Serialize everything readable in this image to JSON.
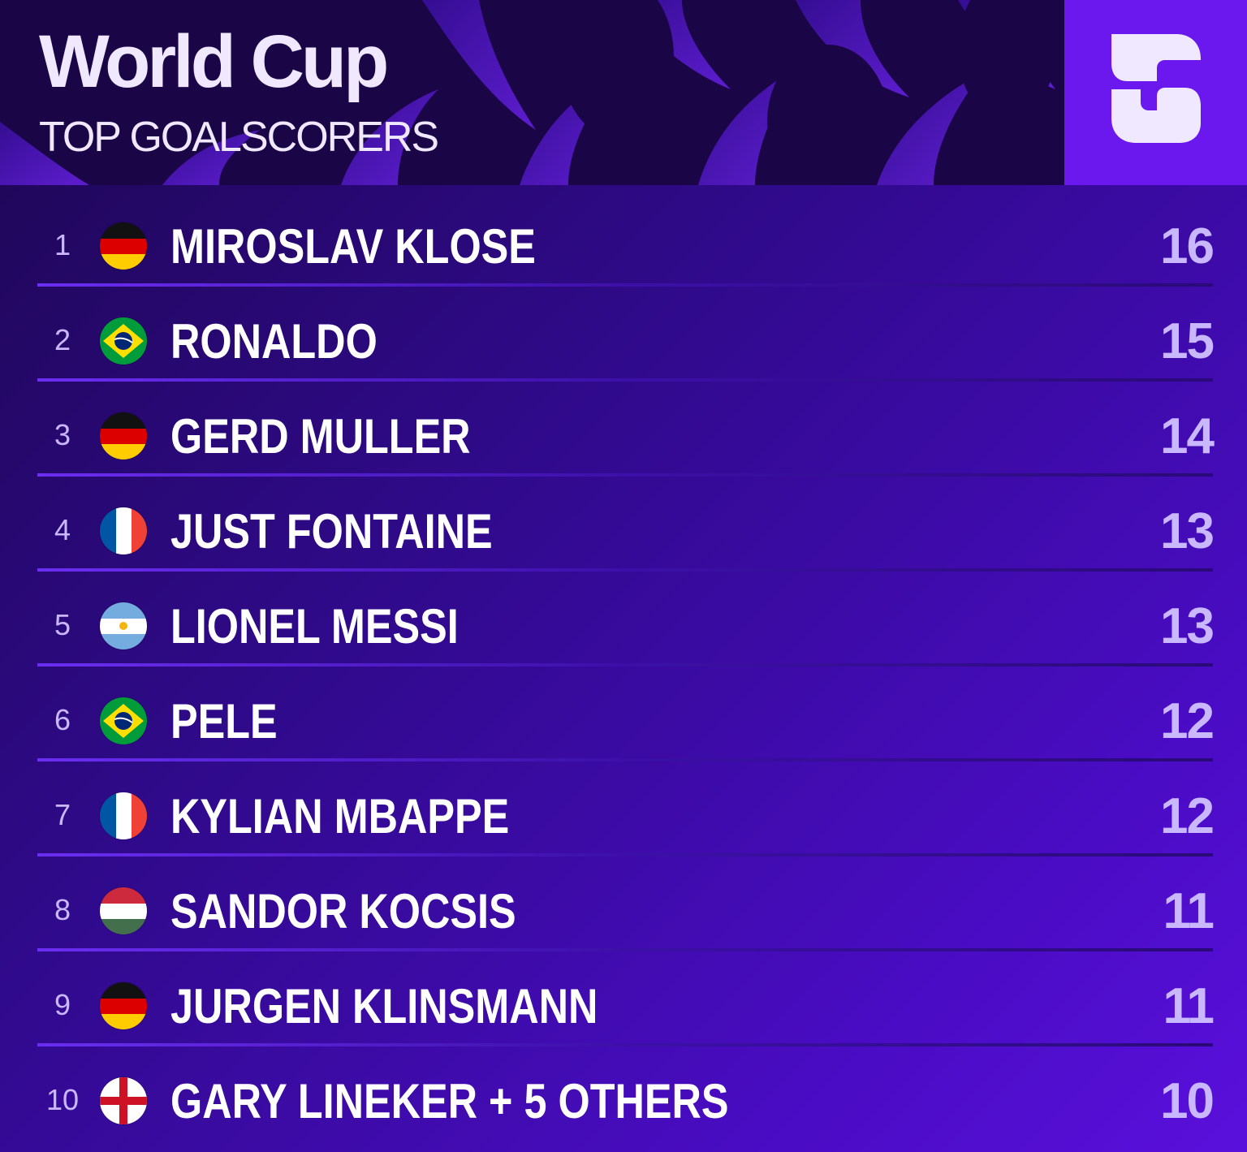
{
  "header": {
    "title": "World Cup",
    "subtitle": "TOP GOALSCORERS",
    "logo_icon": "s-logo-icon"
  },
  "colors": {
    "accent": "#6a18ee",
    "header_bg": "#1a0547",
    "text_light": "#efe8ff",
    "muted_purple": "#c9b8ff"
  },
  "rows": [
    {
      "rank": "1",
      "flag": "germany-flag-icon",
      "name": "MIROSLAV KLOSE",
      "goals": "16"
    },
    {
      "rank": "2",
      "flag": "brazil-flag-icon",
      "name": "RONALDO",
      "goals": "15"
    },
    {
      "rank": "3",
      "flag": "germany-flag-icon",
      "name": "GERD MULLER",
      "goals": "14"
    },
    {
      "rank": "4",
      "flag": "france-flag-icon",
      "name": "JUST FONTAINE",
      "goals": "13"
    },
    {
      "rank": "5",
      "flag": "argentina-flag-icon",
      "name": "LIONEL MESSI",
      "goals": "13"
    },
    {
      "rank": "6",
      "flag": "brazil-flag-icon",
      "name": "PELE",
      "goals": "12"
    },
    {
      "rank": "7",
      "flag": "france-flag-icon",
      "name": "KYLIAN MBAPPE",
      "goals": "12"
    },
    {
      "rank": "8",
      "flag": "hungary-flag-icon",
      "name": "SANDOR KOCSIS",
      "goals": "11"
    },
    {
      "rank": "9",
      "flag": "germany-flag-icon",
      "name": "JURGEN KLINSMANN",
      "goals": "11"
    },
    {
      "rank": "10",
      "flag": "england-flag-icon",
      "name": "GARY LINEKER + 5 OTHERS",
      "goals": "10"
    }
  ]
}
